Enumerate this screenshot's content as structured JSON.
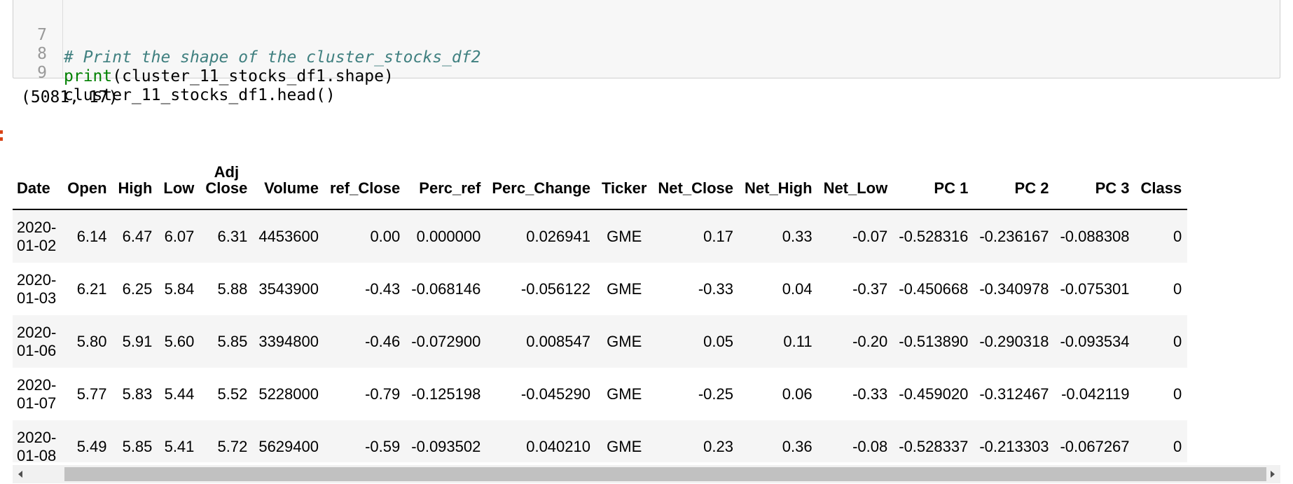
{
  "code_cell": {
    "lines": [
      {
        "num": "7",
        "comment": "# Print the shape of the cluster_stocks_df2"
      },
      {
        "num": "8",
        "builtin": "print",
        "rest": "(cluster_11_stocks_df1.shape)"
      },
      {
        "num": "9",
        "rest": "cluster_11_stocks_df1.head()"
      }
    ]
  },
  "output": {
    "stdout": "(5081, 17)"
  },
  "table": {
    "headers": {
      "date": "Date",
      "open": "Open",
      "high": "High",
      "low": "Low",
      "adj_close_1": "Adj",
      "adj_close_2": "Close",
      "volume": "Volume",
      "ref_close": "ref_Close",
      "perc_ref": "Perc_ref",
      "perc_change": "Perc_Change",
      "ticker": "Ticker",
      "net_close": "Net_Close",
      "net_high": "Net_High",
      "net_low": "Net_Low",
      "pc1": "PC 1",
      "pc2": "PC 2",
      "pc3": "PC 3",
      "class": "Class"
    },
    "rows": [
      {
        "date1": "2020-",
        "date2": "01-02",
        "open": "6.14",
        "high": "6.47",
        "low": "6.07",
        "adj_close": "6.31",
        "volume": "4453600",
        "ref_close": "0.00",
        "perc_ref": "0.000000",
        "perc_change": "0.026941",
        "ticker": "GME",
        "net_close": "0.17",
        "net_high": "0.33",
        "net_low": "-0.07",
        "pc1": "-0.528316",
        "pc2": "-0.236167",
        "pc3": "-0.088308",
        "class": "0"
      },
      {
        "date1": "2020-",
        "date2": "01-03",
        "open": "6.21",
        "high": "6.25",
        "low": "5.84",
        "adj_close": "5.88",
        "volume": "3543900",
        "ref_close": "-0.43",
        "perc_ref": "-0.068146",
        "perc_change": "-0.056122",
        "ticker": "GME",
        "net_close": "-0.33",
        "net_high": "0.04",
        "net_low": "-0.37",
        "pc1": "-0.450668",
        "pc2": "-0.340978",
        "pc3": "-0.075301",
        "class": "0"
      },
      {
        "date1": "2020-",
        "date2": "01-06",
        "open": "5.80",
        "high": "5.91",
        "low": "5.60",
        "adj_close": "5.85",
        "volume": "3394800",
        "ref_close": "-0.46",
        "perc_ref": "-0.072900",
        "perc_change": "0.008547",
        "ticker": "GME",
        "net_close": "0.05",
        "net_high": "0.11",
        "net_low": "-0.20",
        "pc1": "-0.513890",
        "pc2": "-0.290318",
        "pc3": "-0.093534",
        "class": "0"
      },
      {
        "date1": "2020-",
        "date2": "01-07",
        "open": "5.77",
        "high": "5.83",
        "low": "5.44",
        "adj_close": "5.52",
        "volume": "5228000",
        "ref_close": "-0.79",
        "perc_ref": "-0.125198",
        "perc_change": "-0.045290",
        "ticker": "GME",
        "net_close": "-0.25",
        "net_high": "0.06",
        "net_low": "-0.33",
        "pc1": "-0.459020",
        "pc2": "-0.312467",
        "pc3": "-0.042119",
        "class": "0"
      },
      {
        "date1": "2020-",
        "date2": "01-08",
        "open": "5.49",
        "high": "5.85",
        "low": "5.41",
        "adj_close": "5.72",
        "volume": "5629400",
        "ref_close": "-0.59",
        "perc_ref": "-0.093502",
        "perc_change": "0.040210",
        "ticker": "GME",
        "net_close": "0.23",
        "net_high": "0.36",
        "net_low": "-0.08",
        "pc1": "-0.528337",
        "pc2": "-0.213303",
        "pc3": "-0.067267",
        "class": "0"
      }
    ]
  }
}
